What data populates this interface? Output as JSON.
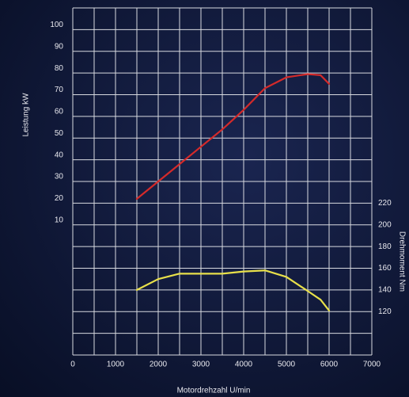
{
  "chart_data": {
    "type": "line",
    "x_label": "Motordrehzahl U/min",
    "y_label": "Leistung kW",
    "y2_label": "Drehmoment Nm",
    "x": [
      1500,
      2000,
      2500,
      3000,
      3500,
      4000,
      4500,
      5000,
      5500,
      5800,
      6000
    ],
    "series": [
      {
        "name": "Leistung",
        "color": "#d42a2a",
        "values": [
          22,
          30,
          38,
          46,
          54,
          63,
          73,
          78,
          79.5,
          79,
          75
        ]
      },
      {
        "name": "Drehmoment",
        "color": "#e8e04a",
        "axis": "y2",
        "values": [
          140,
          150,
          155,
          155,
          155,
          157,
          158,
          152,
          139,
          131,
          121
        ]
      }
    ],
    "xlim": [
      0,
      7000
    ],
    "xticks": [
      0,
      1000,
      2000,
      3000,
      4000,
      5000,
      6000,
      7000
    ],
    "ylim": [
      -50,
      110
    ],
    "yticks": [
      10,
      20,
      30,
      40,
      50,
      60,
      70,
      80,
      90,
      100
    ],
    "y2lim": [
      80,
      400
    ],
    "y2ticks": [
      120,
      140,
      160,
      180,
      200,
      220
    ],
    "grid": true
  }
}
